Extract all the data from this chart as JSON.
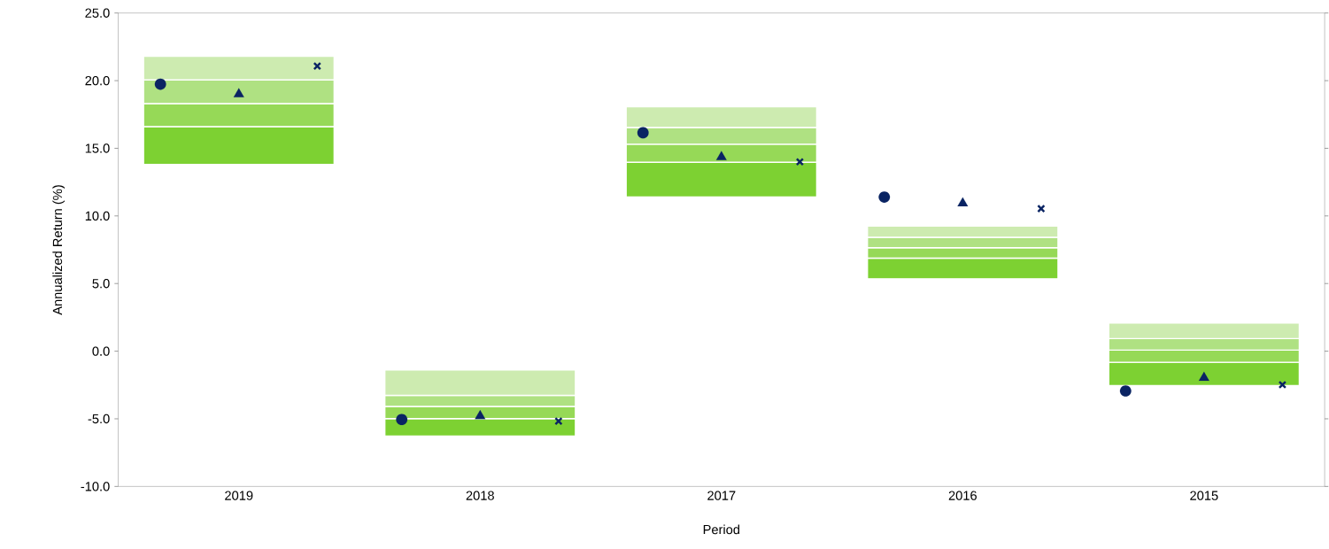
{
  "chart_data": {
    "type": "bar",
    "xlabel": "Period",
    "ylabel": "Annualized Return (%)",
    "categories": [
      "2019",
      "2018",
      "2017",
      "2016",
      "2015"
    ],
    "ylim": [
      -10,
      25
    ],
    "yticks": [
      {
        "value": -10,
        "label": "-10.0"
      },
      {
        "value": -5,
        "label": "-5.0"
      },
      {
        "value": 0,
        "label": "0.0"
      },
      {
        "value": 5,
        "label": "5.0"
      },
      {
        "value": 10,
        "label": "10.0"
      },
      {
        "value": 15,
        "label": "15.0"
      },
      {
        "value": 20,
        "label": "20.0"
      },
      {
        "value": 25,
        "label": "25.0"
      }
    ],
    "series": [
      {
        "color": "#7dd132",
        "base": [
          13.8,
          -6.27,
          11.39,
          5.35,
          -2.54
        ],
        "values": [
          2.8,
          1.28,
          2.57,
          1.53,
          1.72
        ]
      },
      {
        "color": "#96d957",
        "base": [
          16.6,
          -4.99,
          13.96,
          6.88,
          -0.82
        ],
        "values": [
          1.7,
          0.9,
          1.34,
          0.77,
          0.9
        ]
      },
      {
        "color": "#afe182",
        "base": [
          18.3,
          -4.09,
          15.3,
          7.65,
          0.08
        ],
        "values": [
          1.75,
          0.83,
          1.23,
          0.77,
          0.85
        ]
      },
      {
        "color": "#cdebb0",
        "base": [
          20.05,
          -3.26,
          16.53,
          8.42,
          0.93
        ],
        "values": [
          1.75,
          1.87,
          1.54,
          0.83,
          1.15
        ]
      },
      {
        "type": "scatter",
        "marker": "circle",
        "color": "#0a2463",
        "values": [
          19.74,
          -5.05,
          16.15,
          11.39,
          -2.94
        ]
      },
      {
        "type": "scatter",
        "marker": "triangle",
        "color": "#0a2463",
        "values": [
          19.0,
          -4.8,
          14.35,
          10.94,
          -1.97
        ]
      },
      {
        "type": "scatter",
        "marker": "cross",
        "color": "#0a2463",
        "values": [
          21.08,
          -5.17,
          14.0,
          10.54,
          -2.48
        ]
      }
    ]
  }
}
